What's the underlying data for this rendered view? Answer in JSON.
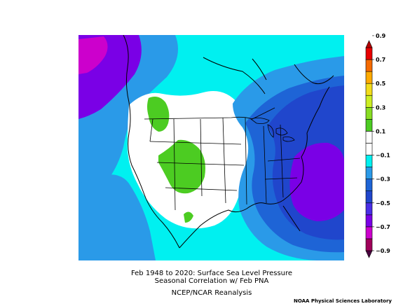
{
  "captions": {
    "line1": "Feb 1948 to 2020: Surface Sea Level Pressure",
    "line2": "Seasonal Correlation w/ Feb PNA",
    "line3": "NCEP/NCAR Reanalysis",
    "credit": "NOAA Physical Sciences Laboratory"
  },
  "colorbar": {
    "bins": [
      {
        "color": "#4b0040"
      },
      {
        "color": "#a0005a"
      },
      {
        "color": "#cc00cc"
      },
      {
        "color": "#7a00e6"
      },
      {
        "color": "#4a2ee6"
      },
      {
        "color": "#2046cc"
      },
      {
        "color": "#1e64d6"
      },
      {
        "color": "#2a9ae8"
      },
      {
        "color": "#00f0f0"
      },
      {
        "color": "#ffffff"
      },
      {
        "color": "#ffffff"
      },
      {
        "color": "#4ccc22"
      },
      {
        "color": "#88dd22"
      },
      {
        "color": "#ccee22"
      },
      {
        "color": "#f2dc1a"
      },
      {
        "color": "#ffaa00"
      },
      {
        "color": "#f56a00"
      },
      {
        "color": "#e80000"
      },
      {
        "color": "#b40000"
      }
    ],
    "labels": [
      {
        "text": "0.9",
        "bin": 18
      },
      {
        "text": "0.7",
        "bin": 16
      },
      {
        "text": "0.5",
        "bin": 14
      },
      {
        "text": "0.3",
        "bin": 12
      },
      {
        "text": "0.1",
        "bin": 10
      },
      {
        "text": "−0.1",
        "bin": 8
      },
      {
        "text": "−0.3",
        "bin": 6
      },
      {
        "text": "−0.5",
        "bin": 4
      },
      {
        "text": "−0.7",
        "bin": 2
      },
      {
        "text": "−0.9",
        "bin": 0
      }
    ]
  },
  "map_colors": {
    "cyan": "#00f0f0",
    "light_blue": "#2a9ae8",
    "blue": "#1e64d6",
    "dark_blue": "#2046cc",
    "violet": "#4a2ee6",
    "purple": "#7a00e6",
    "magenta": "#cc00cc",
    "green": "#4ccc22",
    "white": "#ffffff"
  }
}
